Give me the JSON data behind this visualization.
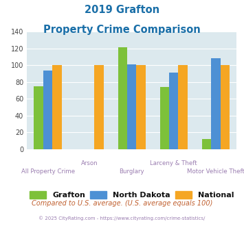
{
  "title_line1": "2019 Grafton",
  "title_line2": "Property Crime Comparison",
  "categories": [
    "All Property Crime",
    "Arson",
    "Burglary",
    "Larceny & Theft",
    "Motor Vehicle Theft"
  ],
  "series": {
    "Grafton": [
      75,
      0,
      121,
      74,
      12
    ],
    "North Dakota": [
      94,
      0,
      101,
      91,
      108
    ],
    "National": [
      100,
      100,
      100,
      100,
      100
    ]
  },
  "colors": {
    "Grafton": "#7dc13a",
    "North Dakota": "#4d90d4",
    "National": "#f5a623"
  },
  "ylim": [
    0,
    140
  ],
  "yticks": [
    0,
    20,
    40,
    60,
    80,
    100,
    120,
    140
  ],
  "plot_bg": "#dce9ee",
  "title_color": "#1a6fa8",
  "xlabel_color": "#9a7db0",
  "footer_text": "Compared to U.S. average. (U.S. average equals 100)",
  "footer_color": "#c06030",
  "copyright_text": "© 2025 CityRating.com - https://www.cityrating.com/crime-statistics/",
  "copyright_color": "#9a7db0",
  "bar_width": 0.22
}
